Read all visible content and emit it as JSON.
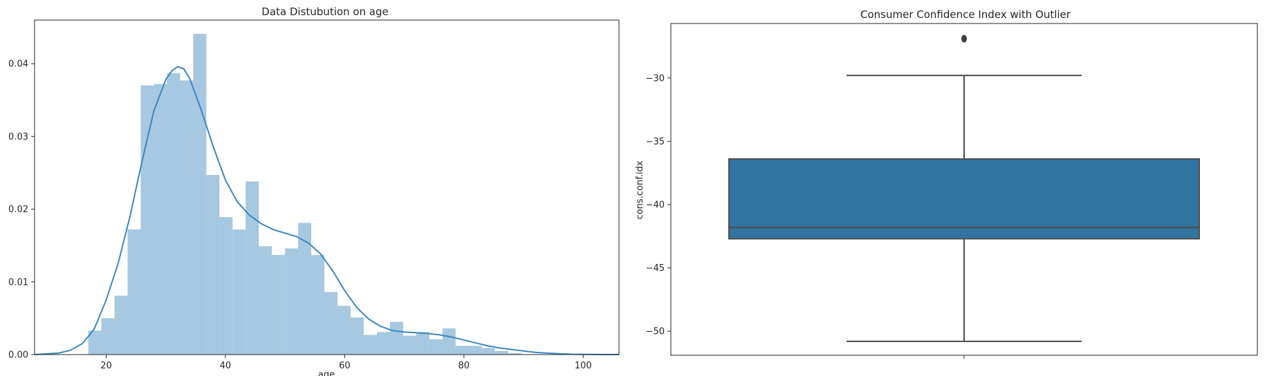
{
  "chart_data": [
    {
      "type": "histogram",
      "title": "Data Distubution on age",
      "xlabel": "age",
      "ylabel": "",
      "xlim": [
        8,
        106
      ],
      "ylim": [
        0,
        0.046
      ],
      "xticks": [
        20,
        40,
        60,
        80,
        100
      ],
      "xtick_labels": [
        "20",
        "40",
        "60",
        "80",
        "100"
      ],
      "yticks": [
        0.0,
        0.01,
        0.02,
        0.03,
        0.04
      ],
      "ytick_labels": [
        "0.00",
        "0.01",
        "0.02",
        "0.03",
        "0.04"
      ],
      "bar_color": "#a6c8e0",
      "kde_color": "#3a87c0",
      "bin_edges": [
        17,
        19.2,
        21.4,
        23.6,
        25.8,
        28.0,
        30.2,
        32.4,
        34.6,
        36.8,
        39.0,
        41.2,
        43.4,
        45.6,
        47.8,
        50.0,
        52.2,
        54.4,
        56.6,
        58.8,
        61.0,
        63.2,
        65.4,
        67.6,
        69.8,
        72.0,
        74.2,
        76.4,
        78.6,
        80.8,
        83.0,
        85.2,
        87.4,
        89.6
      ],
      "values": [
        0.0033,
        0.005,
        0.0081,
        0.0172,
        0.037,
        0.0372,
        0.0387,
        0.0377,
        0.0441,
        0.0247,
        0.0189,
        0.0172,
        0.0238,
        0.0149,
        0.0137,
        0.0146,
        0.0181,
        0.0137,
        0.0086,
        0.0067,
        0.0051,
        0.0027,
        0.0031,
        0.0045,
        0.0026,
        0.0031,
        0.0021,
        0.0036,
        0.0012,
        0.0012,
        0.0009,
        0.0005,
        0.0002
      ],
      "kde": {
        "x": [
          8,
          12,
          14,
          16,
          18,
          20,
          22,
          24,
          26,
          28,
          30,
          31,
          32,
          33,
          34,
          36,
          38,
          40,
          42,
          44,
          46,
          48,
          50,
          52,
          54,
          56,
          58,
          60,
          62,
          64,
          66,
          68,
          70,
          72,
          74,
          76,
          78,
          80,
          82,
          84,
          86,
          88,
          90,
          92,
          95,
          98,
          102,
          106
        ],
        "y": [
          0.0,
          0.0002,
          0.0006,
          0.0015,
          0.0035,
          0.0075,
          0.0125,
          0.019,
          0.0265,
          0.0335,
          0.0378,
          0.039,
          0.0396,
          0.0393,
          0.038,
          0.0335,
          0.0285,
          0.024,
          0.021,
          0.0192,
          0.018,
          0.0172,
          0.0167,
          0.0162,
          0.0153,
          0.0138,
          0.0115,
          0.0088,
          0.0065,
          0.0049,
          0.0039,
          0.0033,
          0.0031,
          0.003,
          0.0029,
          0.0027,
          0.0024,
          0.002,
          0.0016,
          0.0012,
          0.0009,
          0.0007,
          0.0005,
          0.0003,
          0.00015,
          5e-05,
          1e-05,
          0.0
        ]
      }
    },
    {
      "type": "box",
      "title": "Consumer Confidence Index with Outlier",
      "xlabel": "",
      "ylabel": "cons.conf.idx",
      "ylim": [
        -51.9,
        -25.7
      ],
      "yticks": [
        -30,
        -35,
        -40,
        -45,
        -50
      ],
      "ytick_labels": [
        "−30",
        "−35",
        "−40",
        "−45",
        "−50"
      ],
      "box_color": "#3274a1",
      "line_color": "#4d4d4d",
      "whisker_low": -50.8,
      "q1": -42.7,
      "median": -41.8,
      "q3": -36.4,
      "whisker_high": -29.8,
      "outliers": [
        -26.9
      ]
    }
  ]
}
